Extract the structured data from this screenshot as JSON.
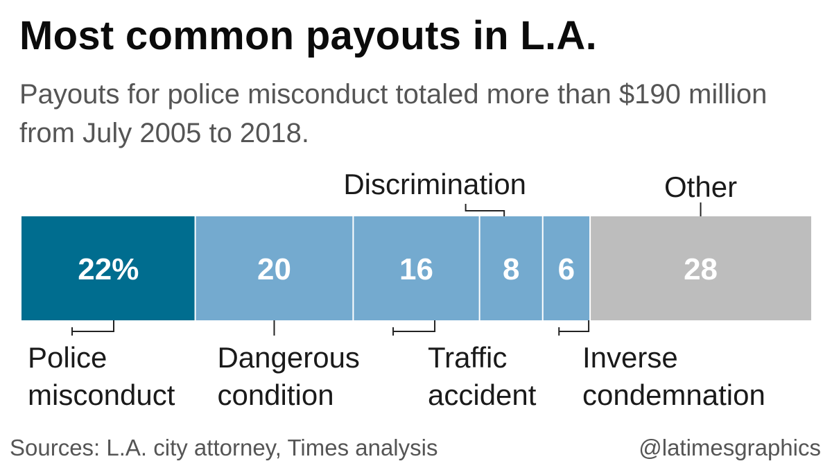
{
  "title": "Most common payouts in L.A.",
  "subtitle": "Payouts for police misconduct totaled more than $190 million from July 2005 to 2018.",
  "chart_data": {
    "type": "bar",
    "orientation": "stacked-horizontal",
    "unit": "%",
    "categories": [
      {
        "label": "Police misconduct",
        "label_lines": [
          "Police",
          "misconduct"
        ],
        "value": 22,
        "value_text": "22%",
        "color": "#006d8f",
        "label_pos": "below"
      },
      {
        "label": "Dangerous condition",
        "label_lines": [
          "Dangerous",
          "condition"
        ],
        "value": 20,
        "value_text": "20",
        "color": "#74aacf",
        "label_pos": "below"
      },
      {
        "label": "Traffic accident",
        "label_lines": [
          "Traffic",
          "accident"
        ],
        "value": 16,
        "value_text": "16",
        "color": "#74aacf",
        "label_pos": "below"
      },
      {
        "label": "Discrimination",
        "label_lines": [
          "Discrimination"
        ],
        "value": 8,
        "value_text": "8",
        "color": "#74aacf",
        "label_pos": "above"
      },
      {
        "label": "Inverse condemnation",
        "label_lines": [
          "Inverse",
          "condemnation"
        ],
        "value": 6,
        "value_text": "6",
        "color": "#74aacf",
        "label_pos": "below"
      },
      {
        "label": "Other",
        "label_lines": [
          "Other"
        ],
        "value": 28,
        "value_text": "28",
        "color": "#bdbdbd",
        "label_pos": "above"
      }
    ]
  },
  "footer": {
    "source": "Sources: L.A. city attorney, Times analysis",
    "credit": "@latimesgraphics"
  }
}
